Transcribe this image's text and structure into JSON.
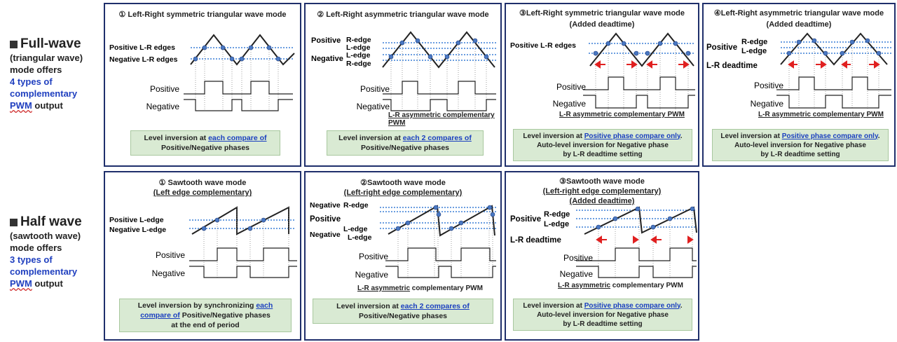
{
  "full": {
    "heading": "Full-wave",
    "lines": [
      "(triangular wave)",
      "mode offers"
    ],
    "highlight": [
      "4 types of",
      "complementary"
    ],
    "pwm": "PWM",
    "output": " output"
  },
  "half": {
    "heading": "Half wave",
    "lines": [
      "(sawtooth wave)",
      "mode offers"
    ],
    "highlight": [
      "3 types of",
      "complementary"
    ],
    "pwm": "PWM",
    "output": " output"
  },
  "panels": [
    {
      "title1": "① Left-Right symmetric triangular wave mode",
      "edge_labels": [
        "Positive L-R edges",
        "Negative  L-R edges"
      ],
      "out_labels": [
        "Positive",
        "Negative"
      ],
      "note_pre": "Level inversion at ",
      "note_link": "each compare of",
      "note_post": "Positive/Negative phases"
    },
    {
      "title1": "② Left-Right asymmetric triangular wave mode",
      "edge_labels": [
        "Positive",
        "R-edge",
        "L-edge",
        "Negative",
        "L-edge",
        "R-edge"
      ],
      "out_labels": [
        "Positive",
        "Negative"
      ],
      "caption": "L-R asymmetric complementary PWM",
      "note_pre": "Level inversion at ",
      "note_link": "each 2 compares of",
      "note_post": "Positive/Negative phases"
    },
    {
      "title1": "③Left-Right symmetric triangular wave mode",
      "title2": "(Added deadtime)",
      "edge_labels": [
        "Positive L-R edges"
      ],
      "out_labels": [
        "Positive",
        "Negative"
      ],
      "caption": "L-R asymmetric complementary PWM",
      "note_pre": "Level inversion at ",
      "note_link": "Positive phase compare only",
      "note_post": ".",
      "note_l2": "Auto-level inversion for Negative phase",
      "note_l3": "by L-R deadtime setting"
    },
    {
      "title1": "④Left-Right asymmetric triangular wave mode",
      "title2": "(Added deadtime)",
      "edge_labels": [
        "Positive",
        "R-edge",
        "L-edge",
        "L-R deadtime"
      ],
      "out_labels": [
        "Positive",
        "Negative"
      ],
      "caption": "L-R asymmetric complementary PWM",
      "note_pre": "Level inversion at ",
      "note_link": "Positive phase compare only",
      "note_post": ".",
      "note_l2": "Auto-level inversion for Negative phase",
      "note_l3": "by L-R deadtime setting"
    },
    {
      "title1": "① Sawtooth wave mode",
      "title2": "(Left edge complementary)",
      "edge_labels": [
        "Positive L-edge",
        "Negative L-edge"
      ],
      "out_labels": [
        "Positive",
        "Negative"
      ],
      "note_pre": "Level inversion by synchronizing ",
      "note_link": "each compare of",
      "note_post": " Positive/Negative phases",
      "note_l3": "at the end of  period"
    },
    {
      "title1": "②Sawtooth wave mode",
      "title2": "(Left-right edge complementary)",
      "edge_labels": [
        "Negative",
        "R-edge",
        "Positive",
        "Negative",
        "L-edge",
        "L-edge"
      ],
      "out_labels": [
        "Positive",
        "Negative"
      ],
      "caption_u": "L-R asymmetric",
      "caption": " complementary PWM",
      "note_pre": "Level inversion at ",
      "note_link": " each 2 compares of",
      "note_post": "Positive/Negative phases"
    },
    {
      "title1": "③Sawtooth wave mode",
      "title2": "(Left-right edge complementary)",
      "title3": "(Added deadtime)",
      "edge_labels": [
        "Positive",
        "R-edge",
        "L-edge",
        "L-R deadtime"
      ],
      "out_labels": [
        "Positive",
        "Negative"
      ],
      "caption_u": "L-R asymmetric",
      "caption": " complementary PWM",
      "note_pre": "Level inversion at ",
      "note_link": "Positive phase compare only",
      "note_post": ".",
      "note_l2": "Auto-level inversion for Negative phase",
      "note_l3": "by L-R deadtime setting"
    }
  ]
}
